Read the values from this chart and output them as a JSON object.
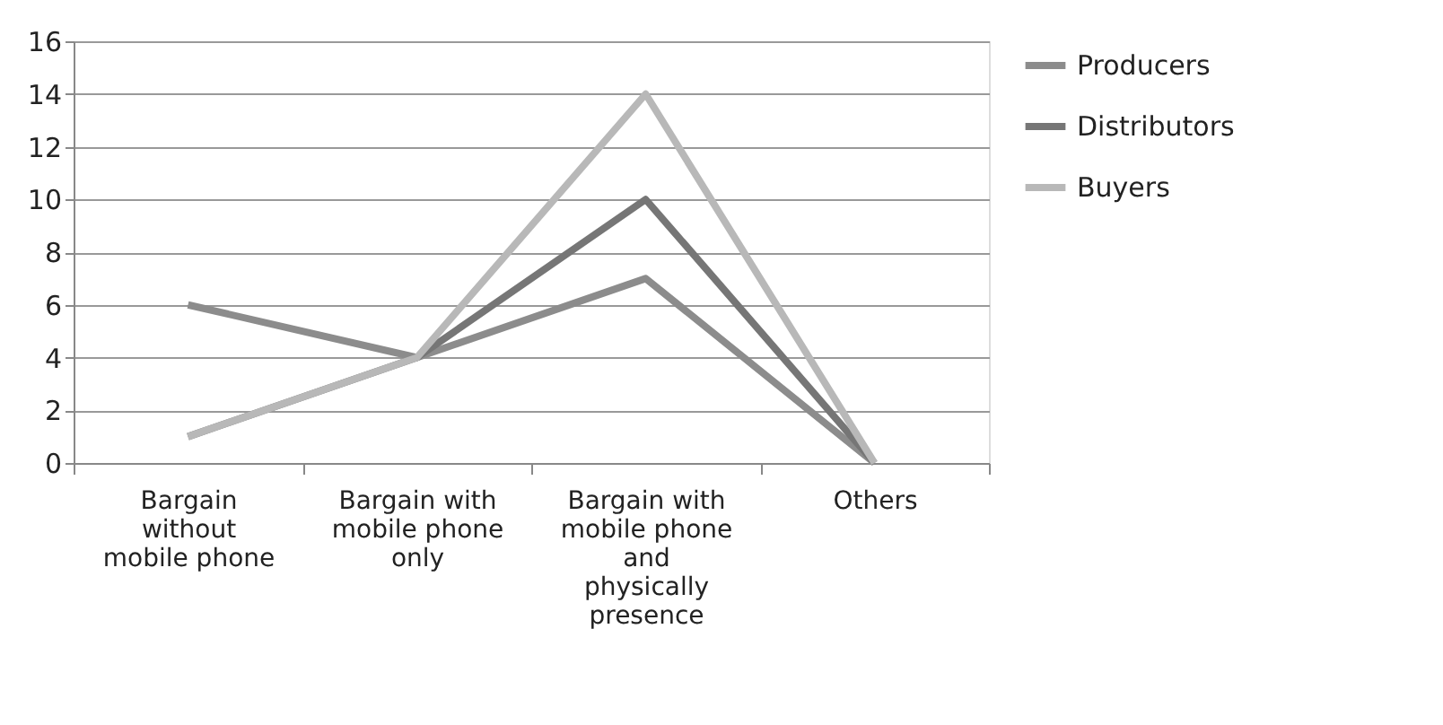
{
  "chart_data": {
    "type": "line",
    "categories": [
      "Bargain without mobile phone",
      "Bargain with mobile phone only",
      "Bargain with mobile phone and physically presence",
      "Others"
    ],
    "series": [
      {
        "name": "Producers",
        "color": "#8c8c8c",
        "values": [
          6,
          4,
          7,
          0
        ]
      },
      {
        "name": "Distributors",
        "color": "#767676",
        "values": [
          1,
          4,
          10,
          0
        ]
      },
      {
        "name": "Buyers",
        "color": "#b8b8b8",
        "values": [
          1,
          4,
          14,
          0
        ]
      }
    ],
    "ylim": [
      0,
      16
    ],
    "yticks": [
      0,
      2,
      4,
      6,
      8,
      10,
      12,
      14,
      16
    ],
    "grid": "y",
    "legend": "right",
    "marker": "none",
    "line_style": "solid"
  }
}
